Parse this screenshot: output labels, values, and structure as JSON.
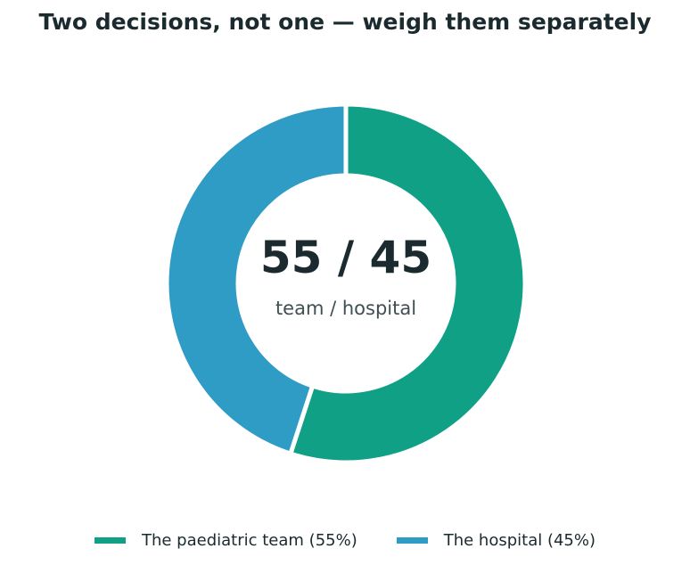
{
  "chart_data": {
    "type": "pie",
    "title": "Two decisions, not one — weigh them separately",
    "categories": [
      "The paediatric team (55%)",
      "The hospital (45%)"
    ],
    "values": [
      55,
      45
    ],
    "colors": [
      "#0fa086",
      "#2f9cc6"
    ],
    "center_value": "55 / 45",
    "center_caption": "team / hospital",
    "legend_position": "bottom"
  }
}
